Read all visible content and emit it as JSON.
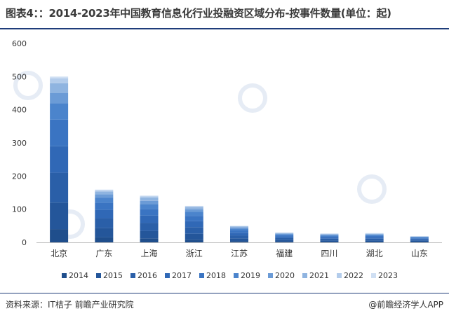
{
  "header": {
    "title": "图表4：：2014-2023年中国教育信息化行业投融资区域分布-按事件数量(单位：起)"
  },
  "footer": {
    "source": "资料来源：IT桔子 前瞻产业研究院",
    "credit": "@前瞻经济学人APP"
  },
  "chart_data": {
    "type": "bar",
    "stacked": true,
    "categories": [
      "北京",
      "广东",
      "上海",
      "浙江",
      "江苏",
      "福建",
      "四川",
      "湖北",
      "山东"
    ],
    "ylim": [
      0,
      600
    ],
    "yticks": [
      0,
      100,
      200,
      300,
      400,
      500,
      600
    ],
    "grid": false,
    "legend_position": "bottom",
    "series": [
      {
        "name": "2014",
        "color": "#1f4e8c",
        "values": [
          40,
          15,
          12,
          8,
          4,
          3,
          2,
          2,
          2
        ]
      },
      {
        "name": "2015",
        "color": "#24569a",
        "values": [
          80,
          28,
          22,
          18,
          8,
          5,
          4,
          4,
          3
        ]
      },
      {
        "name": "2016",
        "color": "#2a5fa8",
        "values": [
          90,
          30,
          25,
          20,
          9,
          5,
          5,
          5,
          3
        ]
      },
      {
        "name": "2017",
        "color": "#3068b6",
        "values": [
          80,
          25,
          22,
          18,
          8,
          4,
          4,
          4,
          3
        ]
      },
      {
        "name": "2018",
        "color": "#3a74c2",
        "values": [
          80,
          22,
          20,
          16,
          7,
          4,
          3,
          4,
          3
        ]
      },
      {
        "name": "2019",
        "color": "#4b84cc",
        "values": [
          50,
          15,
          14,
          12,
          5,
          3,
          3,
          3,
          2
        ]
      },
      {
        "name": "2020",
        "color": "#6b9bd6",
        "values": [
          30,
          10,
          10,
          8,
          4,
          2,
          2,
          2,
          1
        ]
      },
      {
        "name": "2021",
        "color": "#8fb4e0",
        "values": [
          30,
          8,
          10,
          6,
          3,
          2,
          2,
          2,
          1
        ]
      },
      {
        "name": "2022",
        "color": "#b3cceb",
        "values": [
          15,
          4,
          4,
          3,
          1,
          1,
          1,
          1,
          0
        ]
      },
      {
        "name": "2023",
        "color": "#cfdff3",
        "values": [
          5,
          2,
          2,
          1,
          1,
          1,
          1,
          1,
          0
        ]
      }
    ]
  }
}
